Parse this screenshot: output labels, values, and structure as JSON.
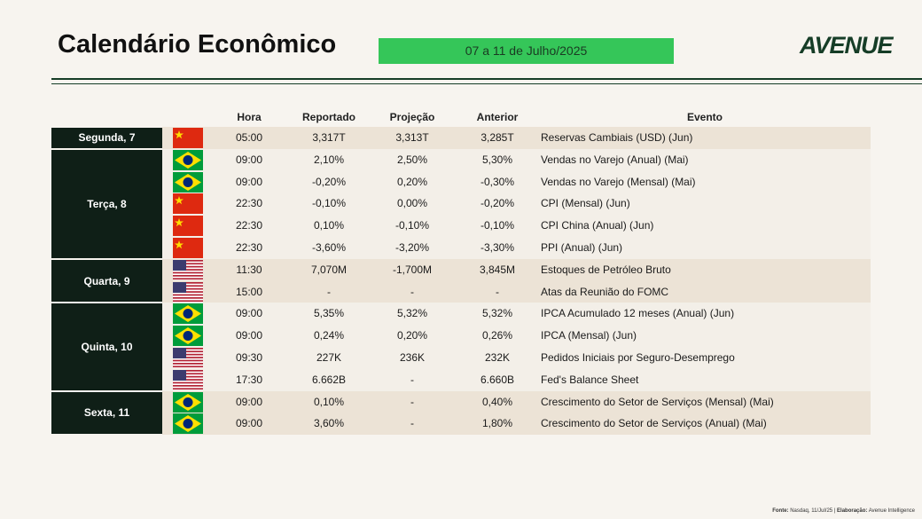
{
  "header": {
    "title": "Calendário Econômico",
    "date_range": "07 a 11 de Julho/2025",
    "logo": "AVENUE"
  },
  "table": {
    "columns": [
      "Hora",
      "Reportado",
      "Projeção",
      "Anterior",
      "Evento"
    ],
    "days": [
      {
        "label": "Segunda, 7",
        "rows": [
          [
            "05:00",
            "3,317T",
            "3,313T",
            "3,285T",
            "Reservas Cambiais (USD) (Jun)"
          ]
        ]
      },
      {
        "label": "Terça, 8",
        "rows": [
          [
            "09:00",
            "2,10%",
            "2,50%",
            "5,30%",
            "Vendas no Varejo (Anual) (Mai)"
          ],
          [
            "09:00",
            "-0,20%",
            "0,20%",
            "-0,30%",
            "Vendas no Varejo (Mensal) (Mai)"
          ],
          [
            "22:30",
            "-0,10%",
            "0,00%",
            "-0,20%",
            "CPI (Mensal) (Jun)"
          ],
          [
            "22:30",
            "0,10%",
            "-0,10%",
            "-0,10%",
            "CPI China (Anual) (Jun)"
          ],
          [
            "22:30",
            "-3,60%",
            "-3,20%",
            "-3,30%",
            "PPI (Anual) (Jun)"
          ]
        ]
      },
      {
        "label": "Quarta, 9",
        "rows": [
          [
            "11:30",
            "7,070M",
            "-1,700M",
            "3,845M",
            "Estoques de Petróleo Bruto"
          ],
          [
            "15:00",
            "-",
            "-",
            "-",
            "Atas da Reunião do FOMC"
          ]
        ]
      },
      {
        "label": "Quinta, 10",
        "rows": [
          [
            "09:00",
            "5,35%",
            "5,32%",
            "5,32%",
            "IPCA Acumulado 12 meses (Anual) (Jun)"
          ],
          [
            "09:00",
            "0,24%",
            "0,20%",
            "0,26%",
            "IPCA (Mensal) (Jun)"
          ],
          [
            "09:30",
            "227K",
            "236K",
            "232K",
            "Pedidos Iniciais por Seguro-Desemprego"
          ],
          [
            "17:30",
            "6.662B",
            "-",
            "6.660B",
            "Fed's Balance Sheet"
          ]
        ]
      },
      {
        "label": "Sexta, 11",
        "rows": [
          [
            "09:00",
            "0,10%",
            "-",
            "0,40%",
            "Crescimento do Setor de Serviços (Mensal) (Mai)"
          ],
          [
            "09:00",
            "3,60%",
            "-",
            "1,80%",
            "Crescimento do Setor de Serviços (Anual) (Mai)"
          ]
        ]
      }
    ]
  },
  "footer": {
    "source_label": "Fonte:",
    "source": "Nasdaq, 11/Jul/25 |",
    "author_label": "Elaboração:",
    "author": "Avenue Intelligence"
  }
}
